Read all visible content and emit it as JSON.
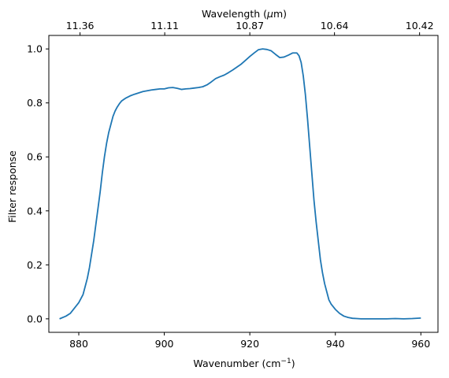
{
  "chart_data": {
    "type": "line",
    "title": "",
    "xlabel": "Wavenumber (cm",
    "xlabel_sup": "−1",
    "xlabel_close": ")",
    "ylabel": "Filter response",
    "top_xlabel_prefix": "Wavelength (",
    "top_xlabel_mu": "μ",
    "top_xlabel_suffix": "m)",
    "xlim": [
      873,
      964
    ],
    "ylim": [
      -0.05,
      1.05
    ],
    "xticks": [
      880,
      900,
      920,
      940,
      960
    ],
    "yticks": [
      0.0,
      0.2,
      0.4,
      0.6,
      0.8,
      1.0
    ],
    "top_ticks": [
      {
        "at": 880.3,
        "label": "11.36"
      },
      {
        "at": 900.1,
        "label": "11.11"
      },
      {
        "at": 920.0,
        "label": "10.87"
      },
      {
        "at": 939.8,
        "label": "10.64"
      },
      {
        "at": 959.7,
        "label": "10.42"
      }
    ],
    "grid": false,
    "line_color": "#1f77b4",
    "series": [
      {
        "x": [
          875.5,
          877,
          878,
          879,
          880,
          881,
          881.5,
          882,
          882.5,
          883,
          883.5,
          884,
          884.5,
          885,
          885.5,
          886,
          886.5,
          887,
          887.5,
          888,
          888.5,
          889,
          889.5,
          890,
          891,
          892,
          893,
          894,
          895,
          896,
          897,
          898,
          899,
          900,
          901,
          902,
          903,
          904,
          905,
          906,
          907,
          908,
          909,
          910,
          911,
          912,
          913,
          914,
          915,
          916,
          917,
          918,
          919,
          920,
          921,
          922,
          923,
          924,
          925,
          926,
          927,
          928,
          929,
          930,
          931,
          931.5,
          932,
          932.5,
          933,
          933.5,
          934,
          934.5,
          935,
          935.5,
          936,
          936.5,
          937,
          937.5,
          938,
          938.5,
          939,
          939.5,
          940,
          941,
          942,
          943,
          944,
          945,
          946,
          948,
          950,
          952,
          954,
          956,
          958,
          960
        ],
        "y": [
          0.0,
          0.01,
          0.02,
          0.04,
          0.06,
          0.09,
          0.12,
          0.15,
          0.19,
          0.24,
          0.29,
          0.35,
          0.41,
          0.47,
          0.54,
          0.6,
          0.65,
          0.69,
          0.72,
          0.75,
          0.77,
          0.785,
          0.797,
          0.807,
          0.818,
          0.826,
          0.832,
          0.837,
          0.842,
          0.845,
          0.848,
          0.85,
          0.852,
          0.852,
          0.856,
          0.857,
          0.854,
          0.85,
          0.852,
          0.853,
          0.855,
          0.857,
          0.86,
          0.867,
          0.878,
          0.89,
          0.897,
          0.903,
          0.912,
          0.922,
          0.933,
          0.944,
          0.958,
          0.972,
          0.985,
          0.997,
          1.0,
          0.998,
          0.993,
          0.98,
          0.968,
          0.97,
          0.977,
          0.985,
          0.985,
          0.975,
          0.95,
          0.9,
          0.83,
          0.74,
          0.64,
          0.54,
          0.44,
          0.36,
          0.29,
          0.22,
          0.17,
          0.13,
          0.1,
          0.07,
          0.055,
          0.045,
          0.035,
          0.02,
          0.01,
          0.005,
          0.002,
          0.001,
          0.0,
          0.0,
          0.0,
          0.0,
          0.001,
          0.0,
          0.001,
          0.003
        ]
      }
    ]
  }
}
